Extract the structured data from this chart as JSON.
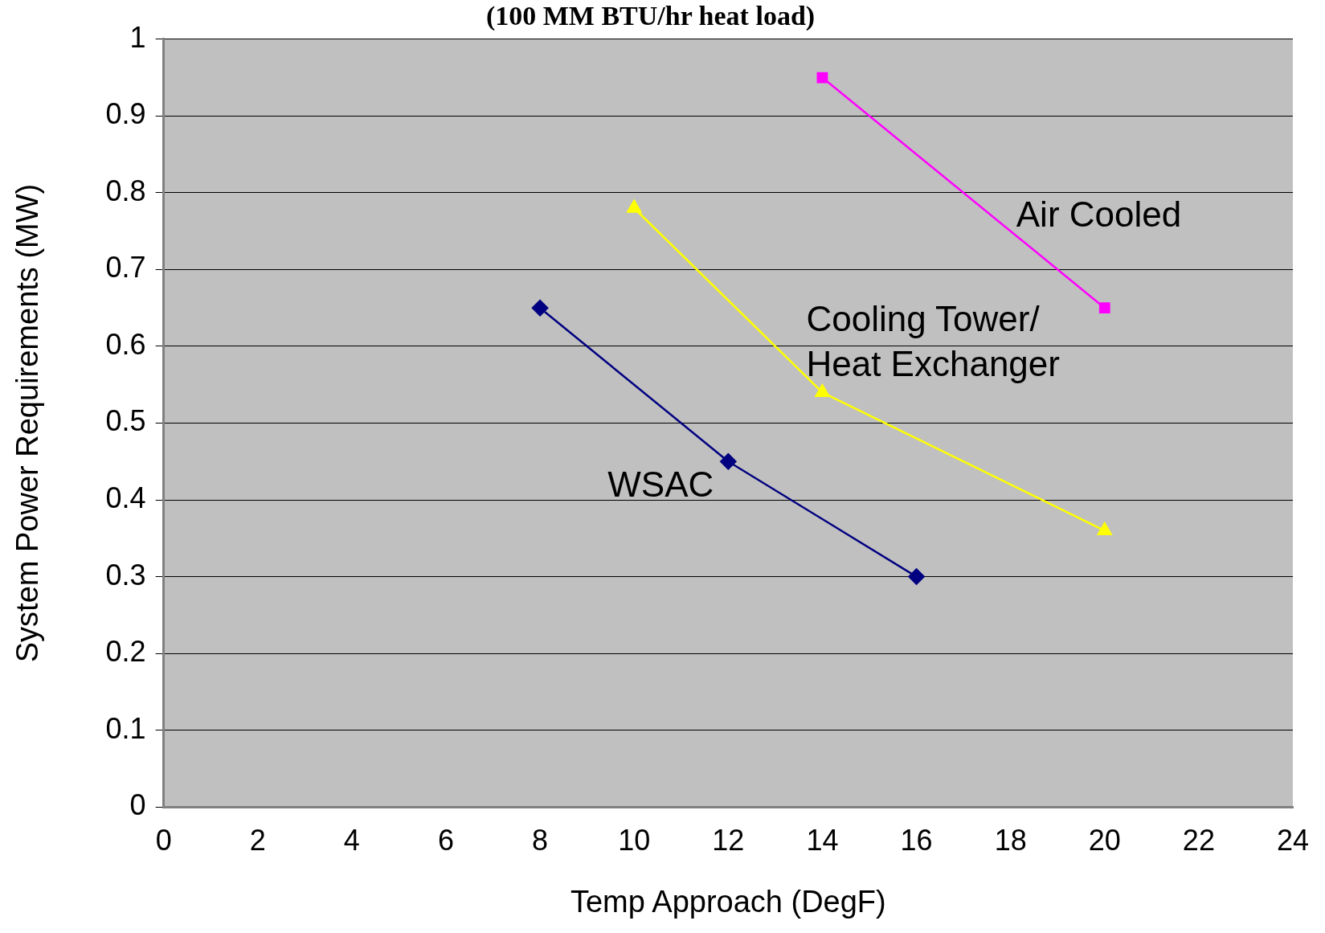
{
  "chart_data": {
    "type": "line",
    "title": "(100 MM BTU/hr heat load)",
    "xlabel": "Temp Approach (DegF)",
    "ylabel": "System Power Requirements (MW)",
    "xlim": [
      0,
      24
    ],
    "xticks": [
      0,
      2,
      4,
      6,
      8,
      10,
      12,
      14,
      16,
      18,
      20,
      22,
      24
    ],
    "ylim": [
      0,
      1
    ],
    "yticks": [
      0,
      0.1,
      0.2,
      0.3,
      0.4,
      0.5,
      0.6,
      0.7,
      0.8,
      0.9,
      1
    ],
    "grid": "y",
    "legend": false,
    "series": [
      {
        "name": "WSAC",
        "color": "#000080",
        "marker": "diamond",
        "x": [
          8,
          12,
          16
        ],
        "values": [
          0.65,
          0.45,
          0.3
        ]
      },
      {
        "name": "Cooling Tower/\nHeat Exchanger",
        "color": "#ffff00",
        "marker": "triangle",
        "x": [
          10,
          14,
          20
        ],
        "values": [
          0.78,
          0.54,
          0.36
        ]
      },
      {
        "name": "Air Cooled",
        "color": "#ff00ff",
        "marker": "square",
        "x": [
          14,
          20
        ],
        "values": [
          0.95,
          0.65
        ]
      }
    ]
  }
}
